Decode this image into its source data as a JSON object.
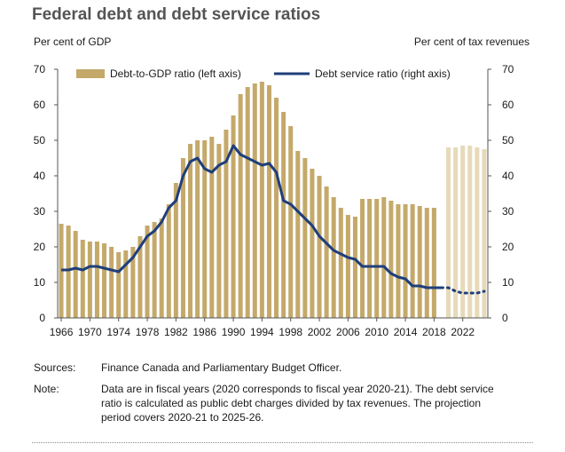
{
  "title": "Federal debt and debt service ratios",
  "left_axis_title": "Per cent of GDP",
  "right_axis_title": "Per cent of tax revenues",
  "sources_label": "Sources:",
  "sources_text": "Finance Canada and Parliamentary Budget Officer.",
  "note_label": "Note:",
  "note_text": "Data are in fiscal years (2020 corresponds to fiscal year 2020-21). The debt service ratio is calculated as public debt charges divided by tax revenues. The projection period covers 2020-21 to 2025-26.",
  "colors": {
    "bar": "#c4a96a",
    "bar_projection": "#e6dab9",
    "line": "#1f3f7a"
  },
  "chart_data": {
    "type": "bar",
    "x": [
      1966,
      1967,
      1968,
      1969,
      1970,
      1971,
      1972,
      1973,
      1974,
      1975,
      1976,
      1977,
      1978,
      1979,
      1980,
      1981,
      1982,
      1983,
      1984,
      1985,
      1986,
      1987,
      1988,
      1989,
      1990,
      1991,
      1992,
      1993,
      1994,
      1995,
      1996,
      1997,
      1998,
      1999,
      2000,
      2001,
      2002,
      2003,
      2004,
      2005,
      2006,
      2007,
      2008,
      2009,
      2010,
      2011,
      2012,
      2013,
      2014,
      2015,
      2016,
      2017,
      2018,
      2019,
      2020,
      2021,
      2022,
      2023,
      2024,
      2025
    ],
    "x_ticks": [
      1966,
      1970,
      1974,
      1978,
      1982,
      1986,
      1990,
      1994,
      1998,
      2002,
      2006,
      2010,
      2014,
      2018,
      2022
    ],
    "projection_start": 2020,
    "series": [
      {
        "name": "Debt-to-GDP ratio (left axis)",
        "type": "bar",
        "axis": "left",
        "values": [
          26.5,
          26,
          24.5,
          22,
          21.5,
          21.5,
          21,
          20,
          18.5,
          19,
          20,
          23,
          26,
          27,
          28,
          32,
          38,
          45,
          49,
          50,
          50,
          51,
          49,
          53,
          57,
          63,
          65,
          66,
          66.5,
          65.5,
          62,
          58,
          54,
          47,
          45,
          42,
          40,
          37,
          34,
          31,
          29,
          28.5,
          33.5,
          33.5,
          33.5,
          34,
          33,
          32,
          32,
          32,
          31.5,
          31,
          31,
          null,
          48,
          48,
          48.5,
          48.5,
          48,
          47.5
        ]
      },
      {
        "name": "Debt service ratio (right axis)",
        "type": "line",
        "axis": "right",
        "values": [
          13.5,
          13.5,
          14,
          13.5,
          14.5,
          14.5,
          14,
          13.5,
          13,
          15,
          17,
          20,
          23,
          24.5,
          27,
          31,
          33,
          40,
          44,
          45,
          42,
          41,
          43,
          44,
          48.5,
          46,
          45,
          44,
          43,
          43.5,
          41,
          33,
          32,
          30,
          28,
          26,
          23,
          21,
          19,
          18,
          17,
          16.5,
          14.5,
          14.5,
          14.5,
          14.5,
          12.5,
          11.5,
          11,
          9,
          9,
          8.5,
          8.5,
          8.5,
          8.5,
          7.5,
          7,
          7,
          7,
          7.5
        ]
      }
    ],
    "left_ylim": [
      0,
      70
    ],
    "right_ylim": [
      0,
      70
    ],
    "y_ticks": [
      0,
      10,
      20,
      30,
      40,
      50,
      60,
      70
    ],
    "legend_position": "top"
  }
}
